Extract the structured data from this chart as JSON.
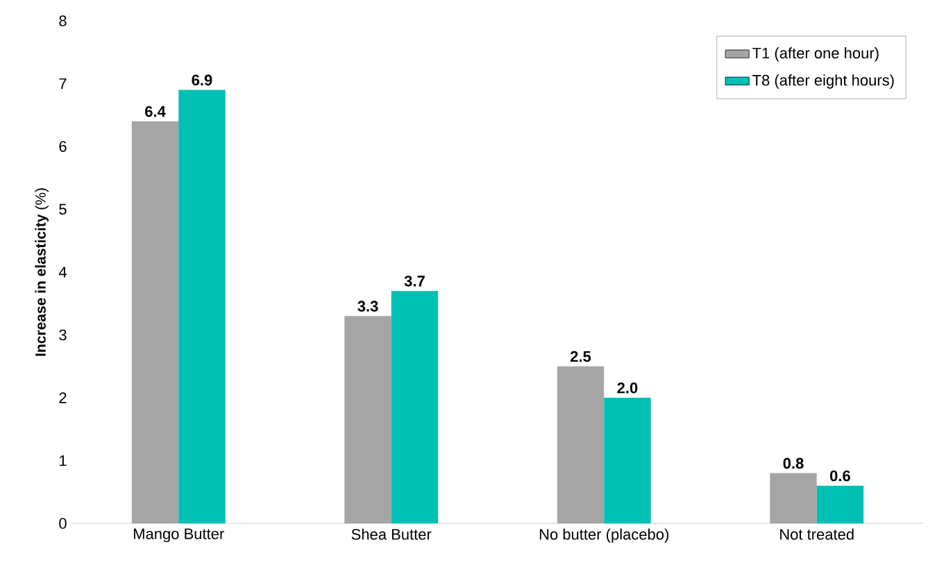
{
  "chart_data": {
    "type": "bar",
    "ylabel": "**Increase in elasticity** (%)",
    "categories": [
      "Mango Butter",
      "Shea Butter",
      "No butter (placebo)",
      "Not treated"
    ],
    "series": [
      {
        "name": "T1 (after one hour)",
        "color": "#a5a5a5",
        "values": [
          6.4,
          3.3,
          2.5,
          0.8
        ],
        "value_labels": [
          "6.4",
          "3.3",
          "2.5",
          "0.8"
        ]
      },
      {
        "name": "T8 (after eight hours)",
        "color": "#00bfb3",
        "values": [
          6.9,
          3.7,
          2.0,
          0.6
        ],
        "value_labels": [
          "6.9",
          "3.7",
          "2.0",
          "0.6"
        ]
      }
    ],
    "ylim": [
      0,
      8
    ],
    "yticks": [
      0,
      1,
      2,
      3,
      4,
      5,
      6,
      7,
      8
    ],
    "legend": "top right",
    "grid": false
  }
}
